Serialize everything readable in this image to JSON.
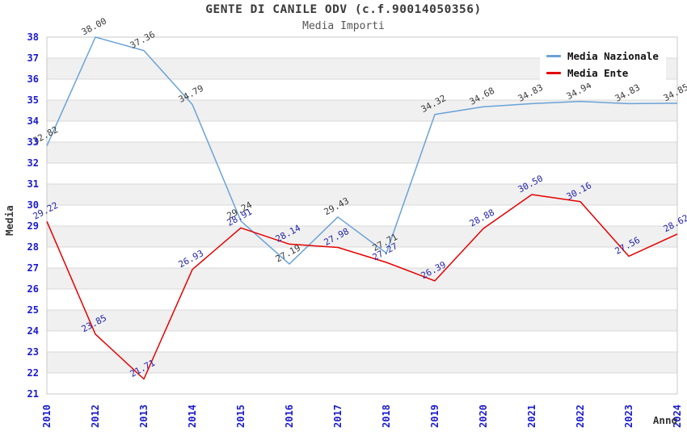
{
  "chart_data": {
    "type": "line",
    "title": "GENTE DI CANILE ODV (c.f.90014050356)",
    "subtitle": "Media Importi",
    "xlabel": "Anno",
    "ylabel": "Media",
    "ylim": [
      21,
      38
    ],
    "y_tick_step": 1,
    "grid": "horizontal-gridlines-with-alternating-bands",
    "legend_position": "top-right",
    "categories": [
      "2010",
      "2012",
      "2013",
      "2014",
      "2015",
      "2016",
      "2017",
      "2018",
      "2019",
      "2020",
      "2021",
      "2022",
      "2023",
      "2024"
    ],
    "series": [
      {
        "name": "Media Nazionale",
        "color": "#6aa2d8",
        "label_color": "#3a3a3a",
        "values": [
          32.82,
          38.0,
          37.36,
          34.79,
          29.24,
          27.19,
          29.43,
          27.71,
          34.32,
          34.68,
          34.83,
          34.94,
          34.83,
          34.85
        ]
      },
      {
        "name": "Media Ente",
        "color": "#e60000",
        "label_color": "#2424aa",
        "values": [
          29.22,
          23.85,
          21.71,
          26.93,
          28.91,
          28.14,
          27.98,
          27.27,
          26.39,
          28.88,
          30.5,
          30.16,
          27.56,
          28.62
        ]
      }
    ],
    "colors": {
      "axis_tick_text": "#1a1acd",
      "band_fill": "#f0f0f0",
      "gridline": "#d9d9d9",
      "plot_border": "#c8c8c8",
      "title_text": "#3a3a3a",
      "subtitle_text": "#555555"
    }
  }
}
